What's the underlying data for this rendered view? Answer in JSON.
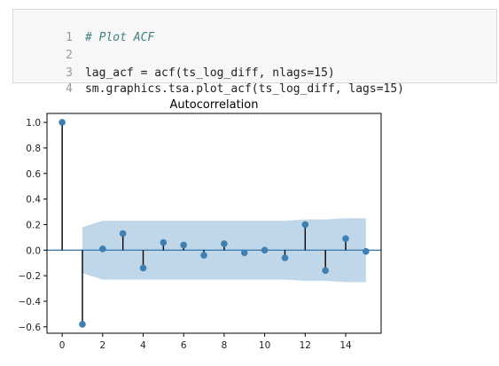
{
  "code_cell": {
    "lines": [
      {
        "number": "1",
        "text": "# Plot ACF",
        "kind": "comment"
      },
      {
        "number": "2",
        "text": "",
        "kind": "code"
      },
      {
        "number": "3",
        "text": "lag_acf = acf(ts_log_diff, nlags=15)",
        "kind": "code"
      },
      {
        "number": "4",
        "text": "sm.graphics.tsa.plot_acf(ts_log_diff, lags=15)",
        "kind": "code"
      }
    ]
  },
  "chart_data": {
    "type": "scatter",
    "title": "Autocorrelation",
    "xlabel": "",
    "ylabel": "",
    "x": [
      0,
      1,
      2,
      3,
      4,
      5,
      6,
      7,
      8,
      9,
      10,
      11,
      12,
      13,
      14,
      15
    ],
    "values": [
      1.0,
      -0.58,
      0.01,
      0.13,
      -0.14,
      0.06,
      0.04,
      -0.04,
      0.05,
      -0.02,
      0.0,
      -0.06,
      0.2,
      -0.16,
      0.09,
      -0.01
    ],
    "confidence_band": {
      "lag": [
        1,
        2,
        3,
        4,
        5,
        6,
        7,
        8,
        9,
        10,
        11,
        12,
        13,
        14,
        15
      ],
      "upper": [
        0.18,
        0.23,
        0.23,
        0.23,
        0.23,
        0.23,
        0.23,
        0.23,
        0.23,
        0.23,
        0.23,
        0.24,
        0.24,
        0.25,
        0.25
      ],
      "lower": [
        -0.18,
        -0.23,
        -0.23,
        -0.23,
        -0.23,
        -0.23,
        -0.23,
        -0.23,
        -0.23,
        -0.23,
        -0.23,
        -0.24,
        -0.24,
        -0.25,
        -0.25
      ]
    },
    "xlim": [
      -0.75,
      15.75
    ],
    "ylim": [
      -0.65,
      1.07
    ],
    "xticks": [
      0,
      2,
      4,
      6,
      8,
      10,
      12,
      14
    ],
    "xtick_labels": [
      "0",
      "2",
      "4",
      "6",
      "8",
      "10",
      "12",
      "14"
    ],
    "yticks": [
      1.0,
      0.8,
      0.6,
      0.4,
      0.2,
      0.0,
      -0.2,
      -0.4,
      -0.6
    ],
    "ytick_labels": [
      "1.0",
      "0.8",
      "0.6",
      "0.4",
      "0.2",
      "0.0",
      "−0.2",
      "−0.4",
      "−0.6"
    ],
    "grid": false,
    "colors": {
      "marker": "#3f7fb1",
      "stem": "#000000",
      "zero_line": "#3f7fb1",
      "band": "#b9d3e7"
    }
  }
}
